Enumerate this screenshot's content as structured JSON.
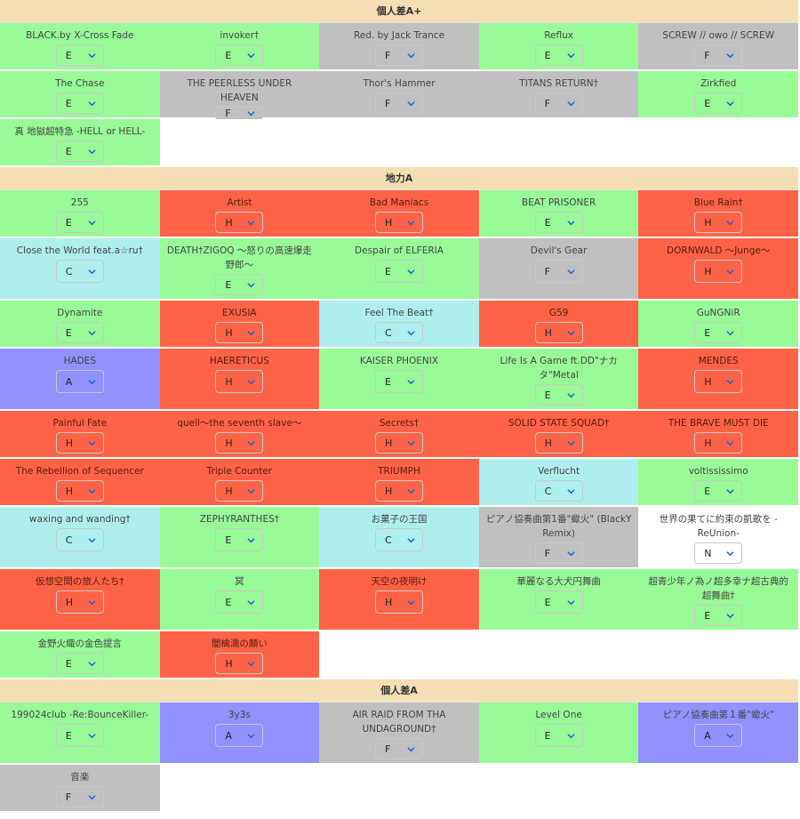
{
  "colors": {
    "E": "#98fb98",
    "F": "#c0c0c0",
    "H": "#ff6347",
    "C": "#afeeee",
    "A": "#9191ff",
    "N": "#ffffff",
    "header": "#f5deb3",
    "chevron": "#1a63d6"
  },
  "sections": [
    {
      "title": "個人差A+",
      "rows": [
        {
          "h": 54,
          "items": [
            {
              "name": "BLACK.by X-Cross Fade",
              "grade": "E"
            },
            {
              "name": "invoker†",
              "grade": "E"
            },
            {
              "name": "Red. by Jack Trance",
              "grade": "F"
            },
            {
              "name": "Reflux",
              "grade": "E"
            },
            {
              "name": "SCREW // owo // SCREW",
              "grade": "F"
            }
          ]
        },
        {
          "h": 54,
          "items": [
            {
              "name": "The Chase",
              "grade": "E"
            },
            {
              "name": "THE PEERLESS UNDER HEAVEN",
              "grade": "F"
            },
            {
              "name": "Thor's Hammer",
              "grade": "F"
            },
            {
              "name": "TITANS RETURN†",
              "grade": "F"
            },
            {
              "name": "Zirkfied",
              "grade": "E"
            }
          ]
        },
        {
          "h": 54,
          "items": [
            {
              "name": "真 地獄超特急 -HELL or HELL-",
              "grade": "E"
            }
          ]
        }
      ]
    },
    {
      "title": "地力A",
      "rows": [
        {
          "h": 54,
          "items": [
            {
              "name": "255",
              "grade": "E"
            },
            {
              "name": "Artist",
              "grade": "H"
            },
            {
              "name": "Bad Maniacs",
              "grade": "H"
            },
            {
              "name": "BEAT PRISONER",
              "grade": "E"
            },
            {
              "name": "Blue Rain†",
              "grade": "H"
            }
          ]
        },
        {
          "h": 70,
          "items": [
            {
              "name": "Close the World feat.a☆ru†",
              "grade": "C"
            },
            {
              "name": "DEATH†ZIGOQ ～怒りの高速爆走野郎～",
              "grade": "E"
            },
            {
              "name": "Despair of ELFERIA",
              "grade": "E"
            },
            {
              "name": "Devil's Gear",
              "grade": "F"
            },
            {
              "name": "DORNWALD ～Junge～",
              "grade": "H"
            }
          ]
        },
        {
          "h": 54,
          "items": [
            {
              "name": "Dynamite",
              "grade": "E"
            },
            {
              "name": "EXUSIA",
              "grade": "H"
            },
            {
              "name": "Feel The Beat†",
              "grade": "C"
            },
            {
              "name": "G59",
              "grade": "H"
            },
            {
              "name": "GuNGNiR",
              "grade": "E"
            }
          ]
        },
        {
          "h": 70,
          "items": [
            {
              "name": "HADES",
              "grade": "A"
            },
            {
              "name": "HAERETICUS",
              "grade": "H"
            },
            {
              "name": "KAISER PHOENIX",
              "grade": "E"
            },
            {
              "name": "Life Is A Game ft.DD\"ナカタ\"Metal",
              "grade": "E"
            },
            {
              "name": "MENDES",
              "grade": "H"
            }
          ]
        },
        {
          "h": 54,
          "items": [
            {
              "name": "Painful Fate",
              "grade": "H"
            },
            {
              "name": "quell～the seventh slave～",
              "grade": "H"
            },
            {
              "name": "Secrets†",
              "grade": "H"
            },
            {
              "name": "SOLID STATE SQUAD†",
              "grade": "H"
            },
            {
              "name": "THE BRAVE MUST DIE",
              "grade": "H"
            }
          ]
        },
        {
          "h": 54,
          "items": [
            {
              "name": "The Rebellion of Sequencer",
              "grade": "H"
            },
            {
              "name": "Triple Counter",
              "grade": "H"
            },
            {
              "name": "TRIUMPH",
              "grade": "H"
            },
            {
              "name": "Verflucht",
              "grade": "C"
            },
            {
              "name": "voltississimo",
              "grade": "E"
            }
          ]
        },
        {
          "h": 70,
          "items": [
            {
              "name": "waxing and wanding†",
              "grade": "C"
            },
            {
              "name": "ZEPHYRANTHES†",
              "grade": "E"
            },
            {
              "name": "お菓子の王国",
              "grade": "C"
            },
            {
              "name": "ピアノ協奏曲第1番\"蠍火\" (BlackY Remix)",
              "grade": "F"
            },
            {
              "name": "世界の果てに約束の凱歌を -ReUnion-",
              "grade": "N"
            }
          ]
        },
        {
          "h": 70,
          "items": [
            {
              "name": "仮想空間の旅人たち†",
              "grade": "H"
            },
            {
              "name": "冥",
              "grade": "E"
            },
            {
              "name": "天空の夜明け",
              "grade": "H"
            },
            {
              "name": "華麗なる大犬円舞曲",
              "grade": "E"
            },
            {
              "name": "超青少年ノ為ノ超多幸ナ超古典的超舞曲†",
              "grade": "E"
            }
          ]
        },
        {
          "h": 54,
          "items": [
            {
              "name": "金野火織の金色提言",
              "grade": "E"
            },
            {
              "name": "闇檎濡の願い",
              "grade": "H"
            }
          ]
        }
      ]
    },
    {
      "title": "個人差A",
      "rows": [
        {
          "h": 70,
          "items": [
            {
              "name": "199024club -Re:BounceKiller-",
              "grade": "E"
            },
            {
              "name": "3y3s",
              "grade": "A"
            },
            {
              "name": "AIR RAID FROM THA UNDAGROUND†",
              "grade": "F"
            },
            {
              "name": "Level One",
              "grade": "E"
            },
            {
              "name": "ピアノ協奏曲第１番\"蠍火\"",
              "grade": "A"
            }
          ]
        },
        {
          "h": 54,
          "items": [
            {
              "name": "音楽",
              "grade": "F"
            }
          ]
        }
      ]
    }
  ]
}
